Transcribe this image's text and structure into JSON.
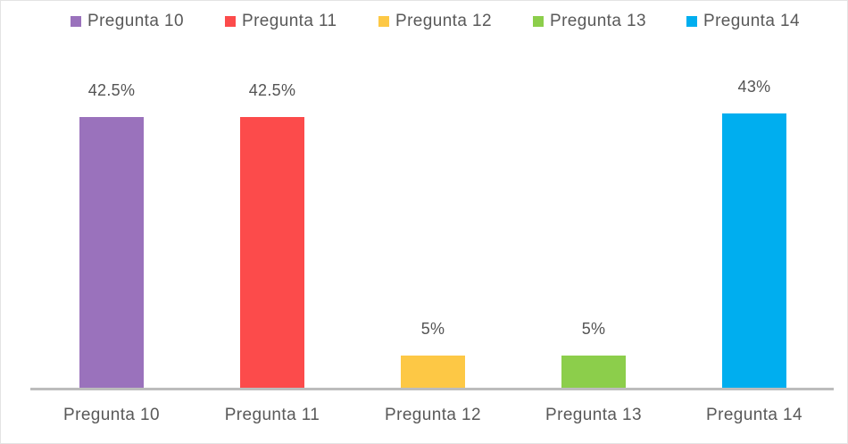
{
  "chart_data": {
    "type": "bar",
    "title": "",
    "xlabel": "",
    "ylabel": "",
    "categories": [
      "Pregunta 10",
      "Pregunta 11",
      "Pregunta 12",
      "Pregunta 13",
      "Pregunta 14"
    ],
    "values": [
      42.5,
      42.5,
      5,
      5,
      43
    ],
    "data_labels": [
      "42.5%",
      "42.5%",
      "5%",
      "5%",
      "43%"
    ],
    "series_colors": [
      "#9A72BC",
      "#FC4B4B",
      "#FDC845",
      "#8CCE4B",
      "#00AEEF"
    ],
    "ylim": [
      0,
      45
    ],
    "grid": false,
    "legend_position": "top",
    "legend": {
      "entries": [
        {
          "label": "Pregunta 10",
          "color": "#9A72BC"
        },
        {
          "label": "Pregunta 11",
          "color": "#FC4B4B"
        },
        {
          "label": "Pregunta 12",
          "color": "#FDC845"
        },
        {
          "label": "Pregunta 13",
          "color": "#8CCE4B"
        },
        {
          "label": "Pregunta 14",
          "color": "#00AEEF"
        }
      ]
    },
    "axis_line_color": "#BCBCBC",
    "text_color": "#595959"
  }
}
